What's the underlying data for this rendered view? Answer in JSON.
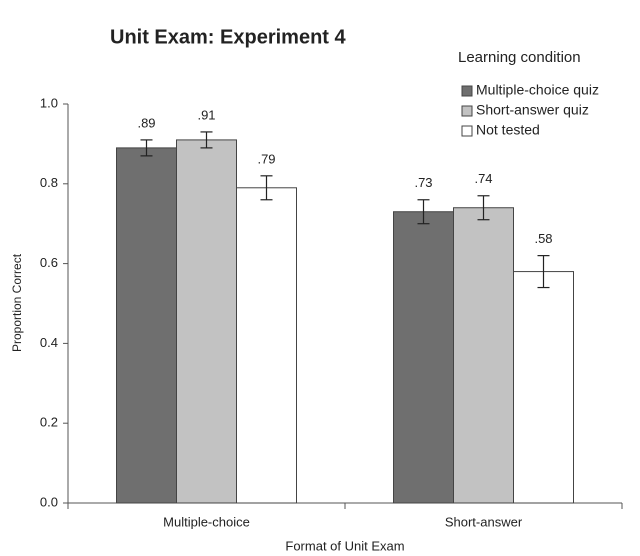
{
  "chart_data": {
    "type": "bar",
    "title": "Unit Exam: Experiment 4",
    "xlabel": "Format of Unit Exam",
    "ylabel": "Proportion Correct",
    "categories": [
      "Multiple-choice",
      "Short-answer"
    ],
    "legend_title": "Learning condition",
    "legend": "top-right",
    "series": [
      {
        "name": "Multiple-choice quiz",
        "color": "#6f6f6f",
        "values": [
          0.89,
          0.73
        ],
        "value_labels": [
          ".89",
          ".73"
        ],
        "errors": [
          0.02,
          0.03
        ]
      },
      {
        "name": "Short-answer quiz",
        "color": "#c2c2c2",
        "values": [
          0.91,
          0.74
        ],
        "value_labels": [
          ".91",
          ".74"
        ],
        "errors": [
          0.02,
          0.03
        ]
      },
      {
        "name": "Not tested",
        "color": "#ffffff",
        "values": [
          0.79,
          0.58
        ],
        "value_labels": [
          ".79",
          ".58"
        ],
        "errors": [
          0.03,
          0.04
        ]
      }
    ],
    "ylim": [
      0,
      1
    ],
    "yticks": [
      {
        "value": 0,
        "label": "0.0"
      },
      0.2,
      0.4,
      0.6,
      0.8,
      {
        "value": 1,
        "label": "1.0"
      }
    ],
    "grid": false
  }
}
